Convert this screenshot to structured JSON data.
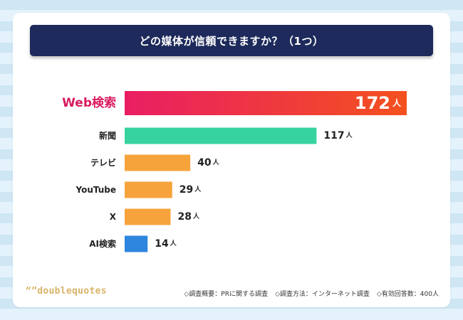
{
  "title": "どの媒体が信頼できますか？（1つ）",
  "colors": {
    "web_start": "#e91e63",
    "web_end": "#f4511e",
    "web_label": "#d81b60",
    "news": "#36d3a0",
    "orange": "#f7a33c",
    "ai": "#2e86de",
    "title_bg": "#1d2a5b"
  },
  "chart_data": {
    "type": "bar",
    "orientation": "horizontal",
    "title": "どの媒体が信頼できますか？（1つ）",
    "unit": "人",
    "categories": [
      "Web検索",
      "新聞",
      "テレビ",
      "YouTube",
      "X",
      "AI検索"
    ],
    "values": [
      172,
      117,
      40,
      29,
      28,
      14
    ],
    "xlim": [
      0,
      172
    ],
    "grid": false,
    "legend": "none"
  },
  "footer": {
    "logo": "“”doublequotes",
    "notes": [
      "◇調査概要：PRに関する調査",
      "◇調査方法：インターネット調査",
      "◇有効回答数：400人"
    ]
  }
}
